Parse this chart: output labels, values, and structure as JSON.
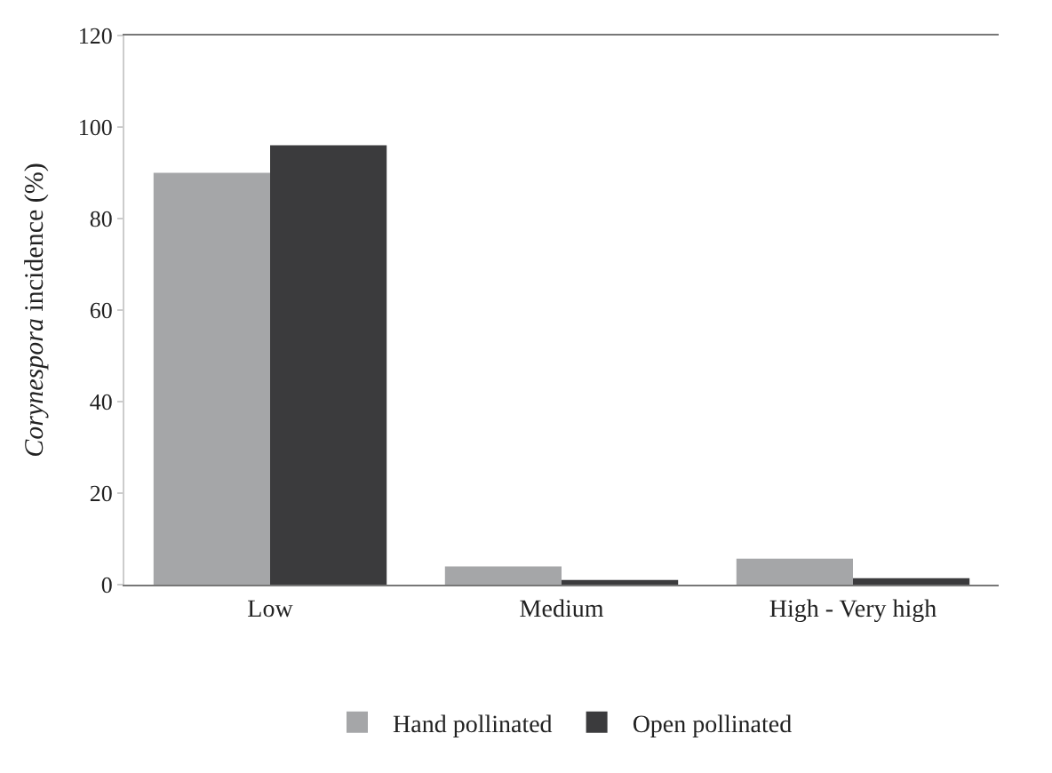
{
  "chart_data": {
    "type": "bar",
    "ylabel": "Corynespora incidence (%)",
    "categories": [
      "Low",
      "Medium",
      "High - Very high"
    ],
    "series": [
      {
        "name": "Hand pollinated",
        "color": "#a5a6a8",
        "values": [
          90,
          4,
          5.7
        ]
      },
      {
        "name": "Open pollinated",
        "color": "#3b3b3d",
        "values": [
          96,
          1,
          1.4
        ]
      }
    ],
    "ylim": [
      0,
      120
    ],
    "yticks": [
      0,
      20,
      40,
      60,
      80,
      100,
      120
    ],
    "legend": "bottom"
  }
}
